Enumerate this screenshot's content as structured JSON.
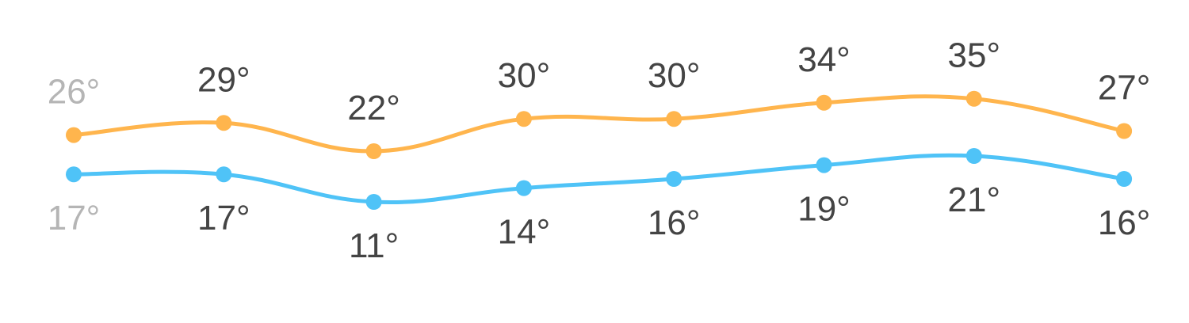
{
  "chart_data": {
    "type": "line",
    "categories": [
      "",
      "",
      "",
      "",
      "",
      "",
      "",
      ""
    ],
    "series": [
      {
        "key": "high",
        "values": [
          26,
          29,
          22,
          30,
          30,
          34,
          35,
          27
        ],
        "labels": [
          "26°",
          "29°",
          "22°",
          "30°",
          "30°",
          "34°",
          "35°",
          "27°"
        ],
        "color": "#ffb54d"
      },
      {
        "key": "low",
        "values": [
          17,
          17,
          11,
          14,
          16,
          19,
          21,
          16
        ],
        "labels": [
          "17°",
          "17°",
          "11°",
          "14°",
          "16°",
          "19°",
          "21°",
          "16°"
        ],
        "color": "#4fc3f7"
      }
    ],
    "unit": "°",
    "label_color": "#444444",
    "first_label_color": "#b5b5b5",
    "grid": false,
    "legend": "none"
  }
}
